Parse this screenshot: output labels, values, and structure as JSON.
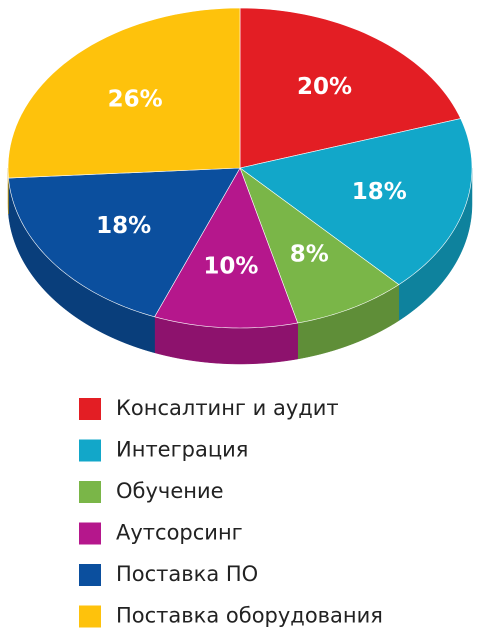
{
  "chart_data": {
    "type": "pie",
    "categories": [
      "Консалтинг и аудит",
      "Интеграция",
      "Обучение",
      "Аутсорсинг",
      "Поставка ПО",
      "Поставка оборудования"
    ],
    "values": [
      20,
      18,
      8,
      10,
      18,
      26
    ],
    "value_labels": [
      "20%",
      "18%",
      "8%",
      "10%",
      "18%",
      "26%"
    ],
    "colors": [
      "#e31e24",
      "#12a7c9",
      "#7ab648",
      "#b5178c",
      "#0b4f9e",
      "#fec20c"
    ]
  }
}
